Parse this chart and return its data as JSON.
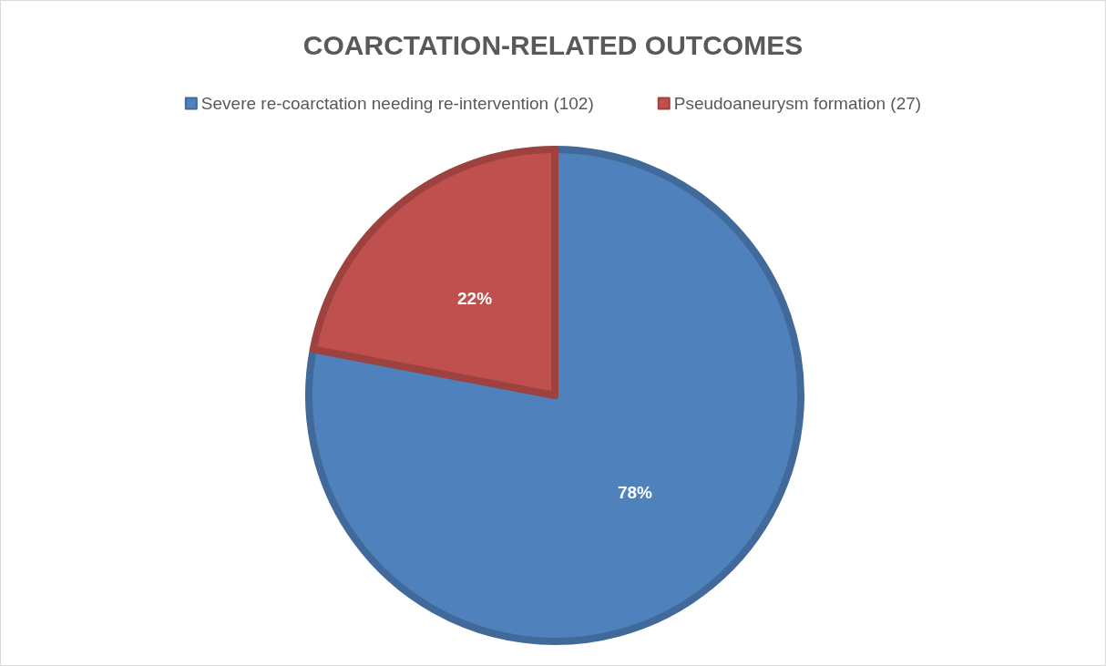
{
  "chart_data": {
    "type": "pie",
    "title": "COARCTATION-RELATED OUTCOMES",
    "categories": [
      "Severe re-coarctation needing re-intervention (102)",
      "Pseudoaneurysm formation (27)"
    ],
    "values": [
      78,
      22
    ],
    "colors": [
      "#4f81bd",
      "#c0504d"
    ],
    "value_labels": [
      "78%",
      "22%"
    ],
    "legend": "top"
  }
}
